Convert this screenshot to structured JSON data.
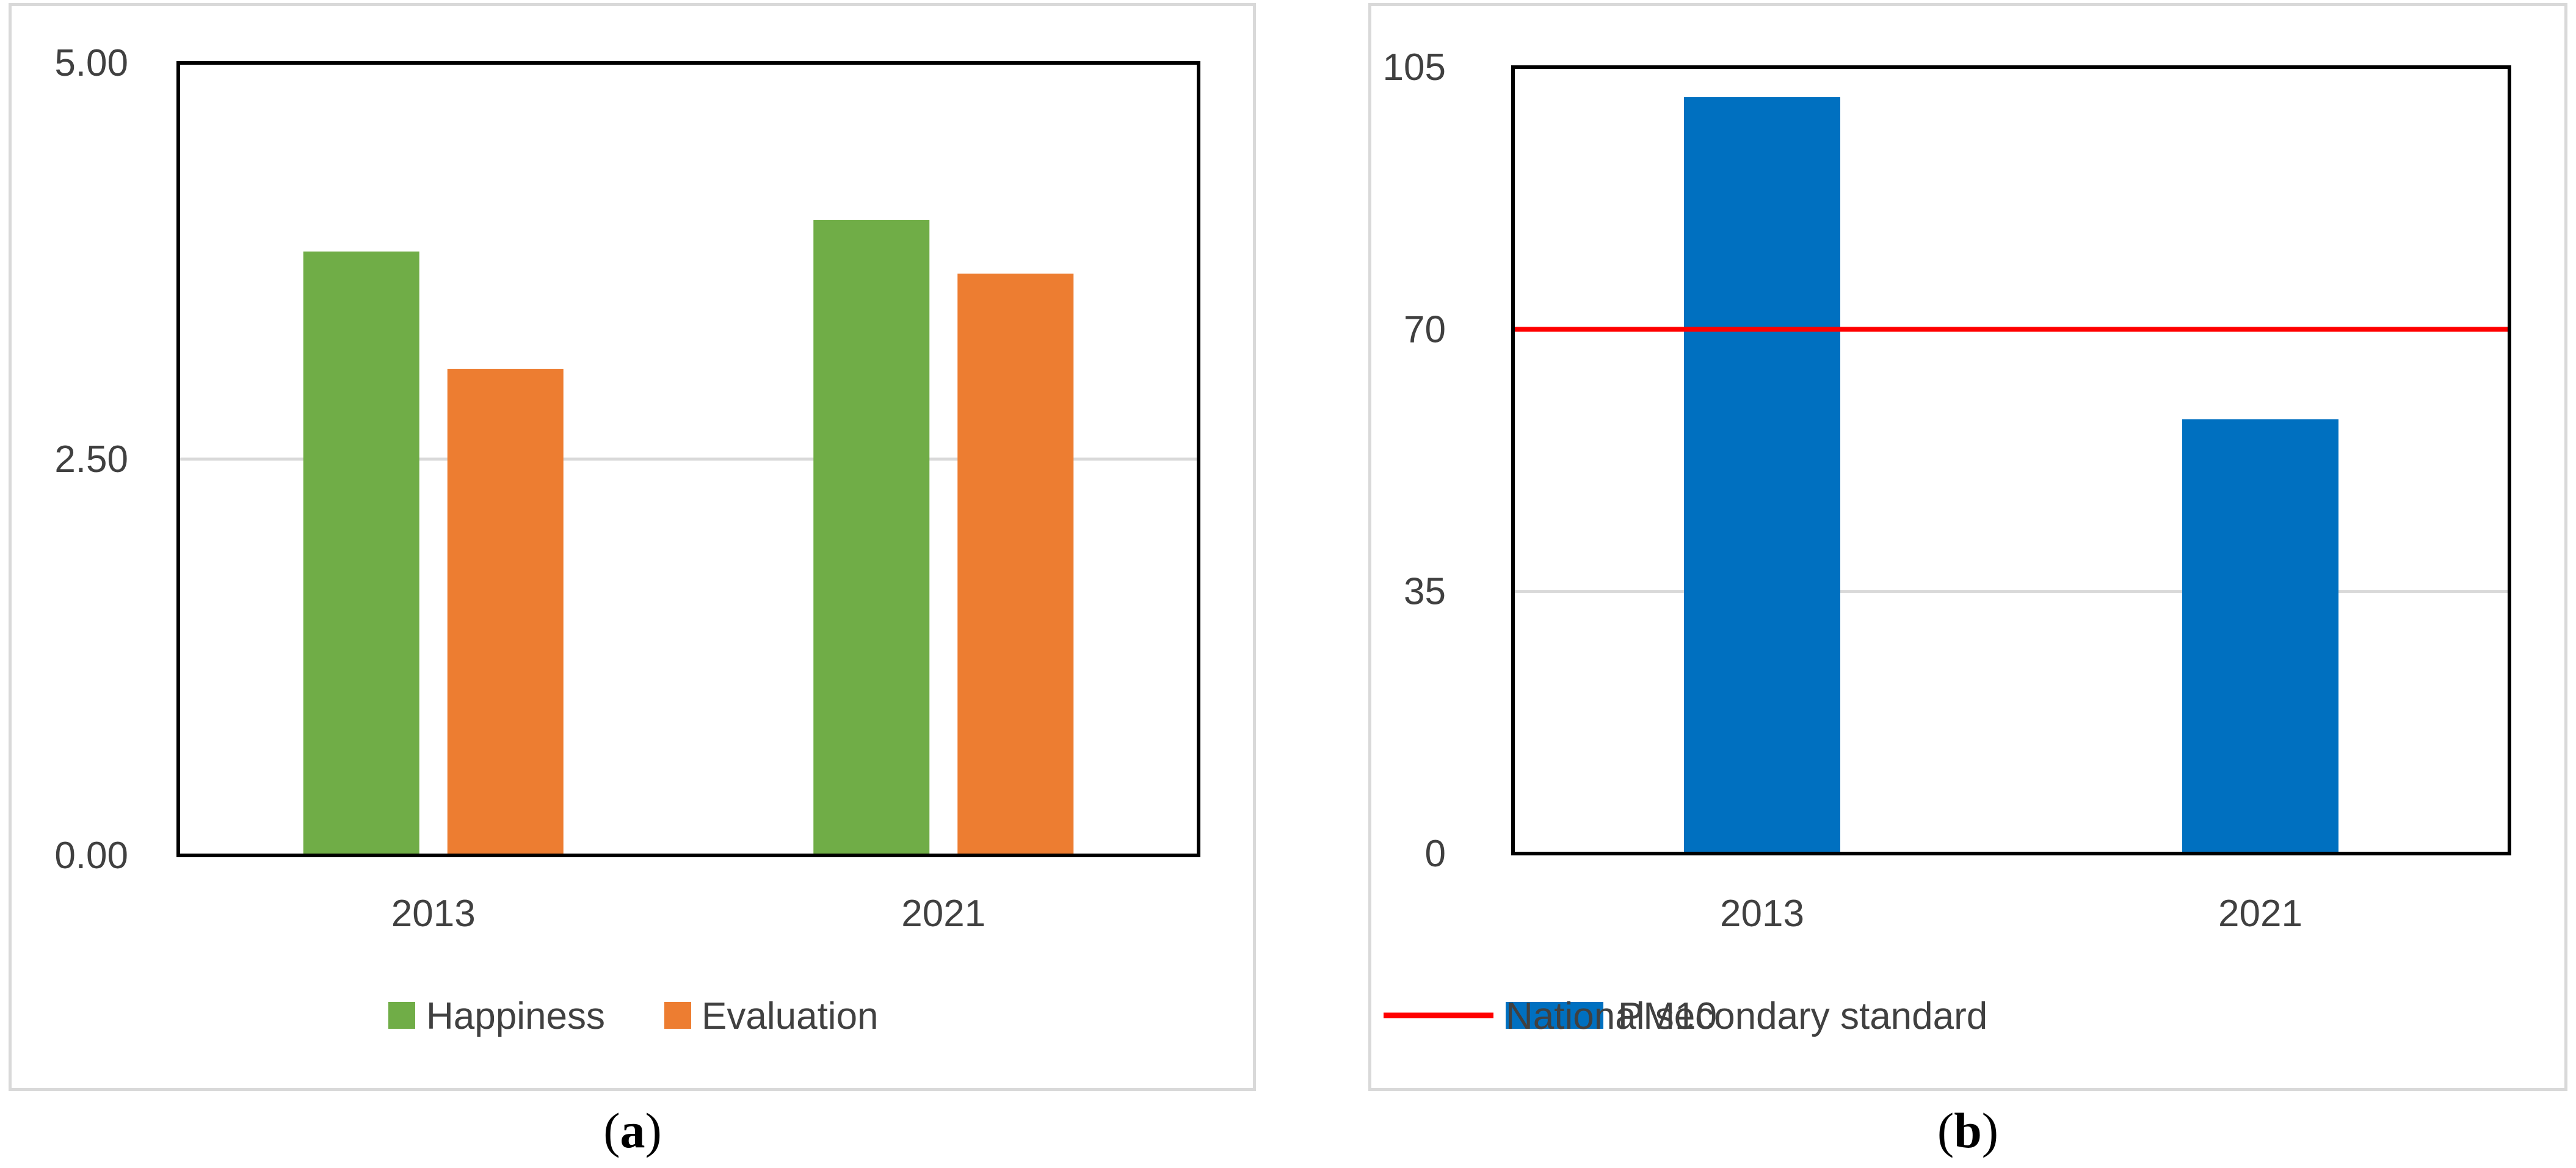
{
  "chart_data": [
    {
      "type": "bar",
      "panel_label": "a",
      "categories": [
        "2013",
        "2021"
      ],
      "series": [
        {
          "name": "Happiness",
          "values": [
            3.81,
            4.01
          ],
          "color": "#70ad47"
        },
        {
          "name": "Evaluation",
          "values": [
            3.07,
            3.67
          ],
          "color": "#ed7d31"
        }
      ],
      "ylim": [
        0,
        5
      ],
      "yticks": [
        "0.00",
        "2.50",
        "5.00"
      ],
      "ytick_values": [
        0,
        2.5,
        5
      ],
      "gridlines": true,
      "legend_position": "bottom",
      "title": "",
      "xlabel": "",
      "ylabel": ""
    },
    {
      "type": "bar",
      "panel_label": "b",
      "categories": [
        "2013",
        "2021"
      ],
      "series": [
        {
          "name": "PM10",
          "values": [
            101,
            58
          ],
          "color": "#0070c0",
          "kind": "bar"
        },
        {
          "name": "National secondary standard",
          "values": [
            70,
            70
          ],
          "color": "#ff0000",
          "kind": "line"
        }
      ],
      "ylim": [
        0,
        105
      ],
      "yticks": [
        "0",
        "35",
        "70",
        "105"
      ],
      "ytick_values": [
        0,
        35,
        70,
        105
      ],
      "gridlines": true,
      "legend_position": "bottom",
      "title": "",
      "xlabel": "",
      "ylabel": ""
    }
  ],
  "captions": {
    "a": {
      "open": "(",
      "letter": "a",
      "close": ")"
    },
    "b": {
      "open": "(",
      "letter": "b",
      "close": ")"
    }
  }
}
